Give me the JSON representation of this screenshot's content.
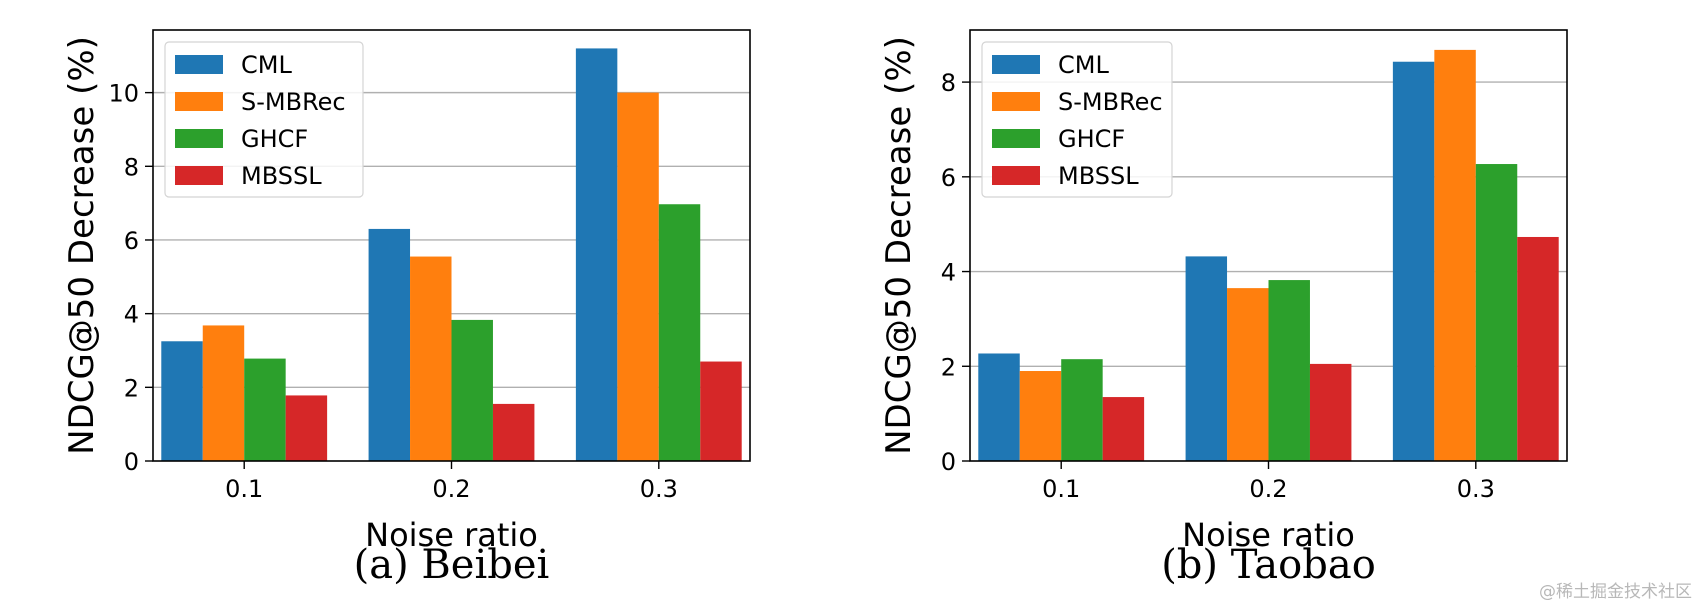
{
  "chart_data": [
    {
      "type": "bar",
      "title": "",
      "caption": "(a) Beibei",
      "xlabel": "Noise ratio",
      "ylabel": "NDCG@50 Decrease (%)",
      "categories": [
        "0.1",
        "0.2",
        "0.3"
      ],
      "ylim": [
        0,
        11.7
      ],
      "yticks": [
        0,
        2,
        4,
        6,
        8,
        10
      ],
      "grid": true,
      "legend_position": "top-left",
      "series": [
        {
          "name": "CML",
          "color": "#1f77b4",
          "values": [
            3.25,
            6.3,
            11.2
          ]
        },
        {
          "name": "S-MBRec",
          "color": "#ff7f0e",
          "values": [
            3.68,
            5.55,
            10.0
          ]
        },
        {
          "name": "GHCF",
          "color": "#2ca02c",
          "values": [
            2.78,
            3.83,
            6.97
          ]
        },
        {
          "name": "MBSSL",
          "color": "#d62728",
          "values": [
            1.78,
            1.55,
            2.7
          ]
        }
      ]
    },
    {
      "type": "bar",
      "title": "",
      "caption": "(b) Taobao",
      "xlabel": "Noise ratio",
      "ylabel": "NDCG@50 Decrease (%)",
      "categories": [
        "0.1",
        "0.2",
        "0.3"
      ],
      "ylim": [
        0,
        9.1
      ],
      "yticks": [
        0,
        2,
        4,
        6,
        8
      ],
      "grid": true,
      "legend_position": "top-left",
      "series": [
        {
          "name": "CML",
          "color": "#1f77b4",
          "values": [
            2.27,
            4.32,
            8.43
          ]
        },
        {
          "name": "S-MBRec",
          "color": "#ff7f0e",
          "values": [
            1.9,
            3.65,
            8.68
          ]
        },
        {
          "name": "GHCF",
          "color": "#2ca02c",
          "values": [
            2.15,
            3.82,
            6.27
          ]
        },
        {
          "name": "MBSSL",
          "color": "#d62728",
          "values": [
            1.35,
            2.05,
            4.73
          ]
        }
      ]
    }
  ],
  "watermark": "@稀土掘金技术社区"
}
